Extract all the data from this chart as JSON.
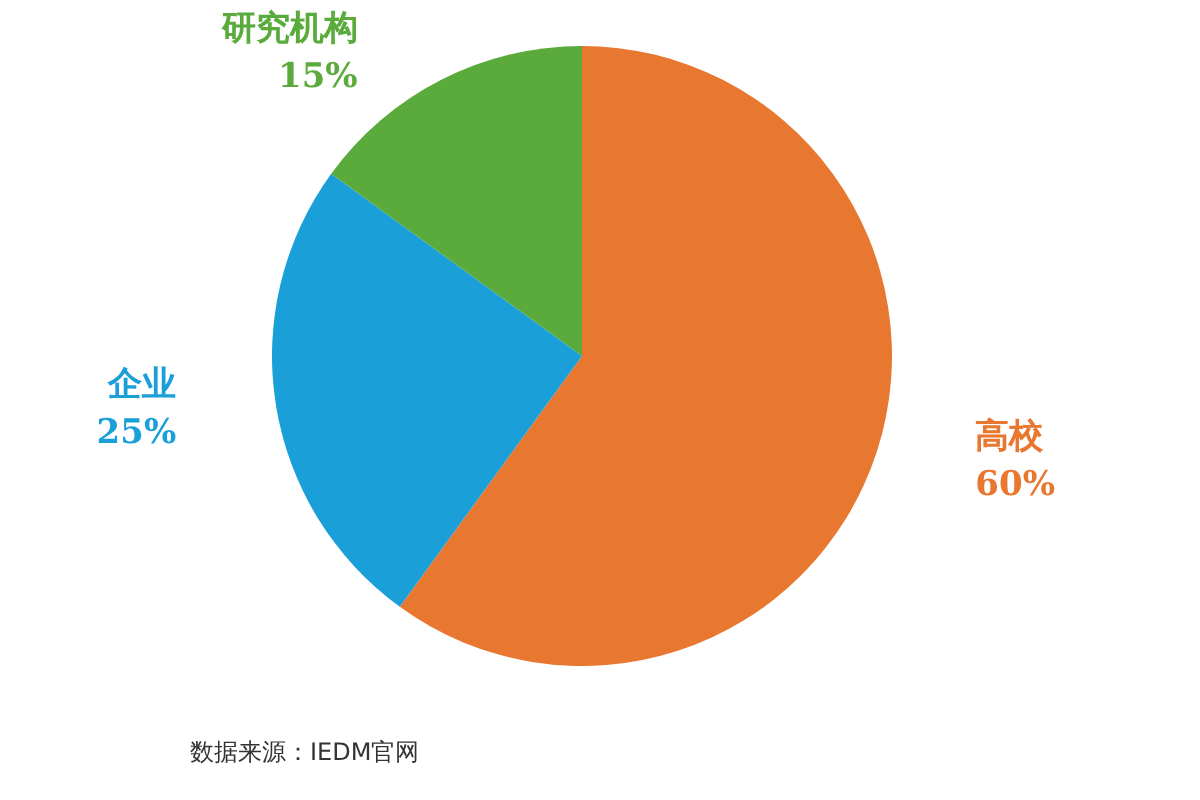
{
  "chart_data": {
    "type": "pie",
    "categories": [
      "高校",
      "企业",
      "研究机构"
    ],
    "values": [
      60,
      25,
      15
    ],
    "value_labels": [
      "60%",
      "25%",
      "15%"
    ],
    "colors": [
      "#e8772f",
      "#1a9fd9",
      "#5aab3c"
    ],
    "annotations": [
      "数据来源：IEDM官网"
    ]
  }
}
